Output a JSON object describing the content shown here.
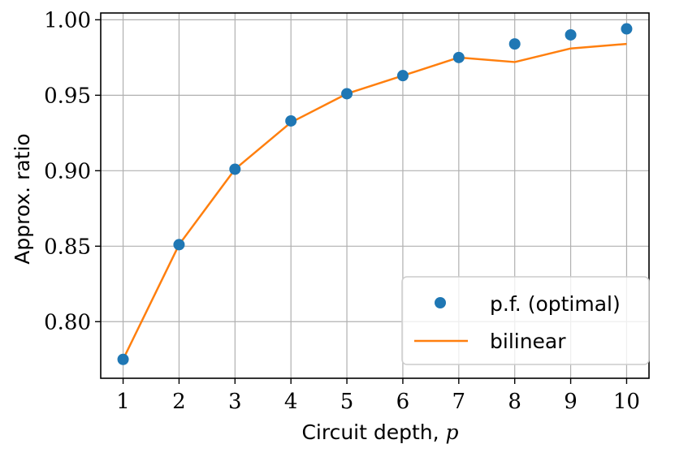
{
  "chart_data": {
    "type": "line",
    "title": "",
    "xlabel": "Circuit depth, ",
    "xlabel_var": "p",
    "ylabel": "Approx. ratio",
    "x": [
      1,
      2,
      3,
      4,
      5,
      6,
      7,
      8,
      9,
      10
    ],
    "xlim": [
      0.6,
      10.4
    ],
    "ylim": [
      0.7625,
      1.0045
    ],
    "x_ticks": [
      1,
      2,
      3,
      4,
      5,
      6,
      7,
      8,
      9,
      10
    ],
    "x_tick_labels": [
      "1",
      "2",
      "3",
      "4",
      "5",
      "6",
      "7",
      "8",
      "9",
      "10"
    ],
    "y_ticks": [
      0.8,
      0.85,
      0.9,
      0.95,
      1.0
    ],
    "y_tick_labels": [
      "0.80",
      "0.85",
      "0.90",
      "0.95",
      "1.00"
    ],
    "grid": true,
    "legend_position": "lower-right",
    "series": [
      {
        "name": "p.f. (optimal)",
        "kind": "scatter",
        "color": "#1f77b4",
        "values": [
          0.775,
          0.851,
          0.901,
          0.933,
          0.951,
          0.963,
          0.975,
          0.984,
          0.99,
          0.994
        ]
      },
      {
        "name": "bilinear",
        "kind": "line",
        "color": "#ff7f0e",
        "values": [
          0.775,
          0.851,
          0.901,
          0.932,
          0.951,
          0.963,
          0.975,
          0.972,
          0.981,
          0.984
        ]
      }
    ]
  }
}
